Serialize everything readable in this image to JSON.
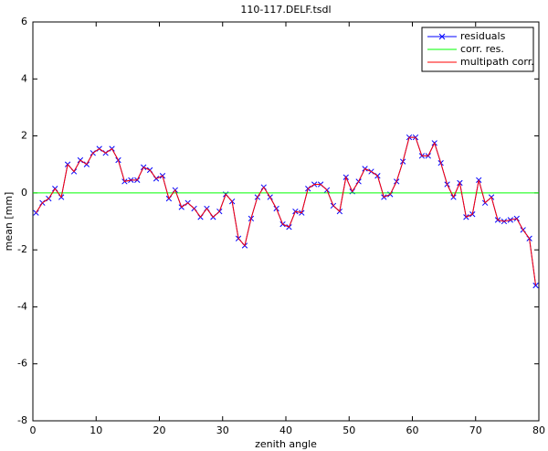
{
  "chart_data": {
    "type": "line",
    "title": "110-117.DELF.tsdl",
    "x_label": "zenith angle",
    "y_label": "mean  [mm]",
    "x": [
      0.5,
      1.5,
      2.5,
      3.5,
      4.5,
      5.5,
      6.5,
      7.5,
      8.5,
      9.5,
      10.5,
      11.5,
      12.5,
      13.5,
      14.5,
      15.5,
      16.5,
      17.5,
      18.5,
      19.5,
      20.5,
      21.5,
      22.5,
      23.5,
      24.5,
      25.5,
      26.5,
      27.5,
      28.5,
      29.5,
      30.5,
      31.5,
      32.5,
      33.5,
      34.5,
      35.5,
      36.5,
      37.5,
      38.5,
      39.5,
      40.5,
      41.5,
      42.5,
      43.5,
      44.5,
      45.5,
      46.5,
      47.5,
      48.5,
      49.5,
      50.5,
      51.5,
      52.5,
      53.5,
      54.5,
      55.5,
      56.5,
      57.5,
      58.5,
      59.5,
      60.5,
      61.5,
      62.5,
      63.5,
      64.5,
      65.5,
      66.5,
      67.5,
      68.5,
      69.5,
      70.5,
      71.5,
      72.5,
      73.5,
      74.5,
      75.5,
      76.5,
      77.5,
      78.5,
      79.5
    ],
    "series": [
      {
        "name": "residuals",
        "color": "#0000ff",
        "marker": "x",
        "values": [
          -0.7,
          -0.35,
          -0.2,
          0.15,
          -0.15,
          1.0,
          0.75,
          1.15,
          1.0,
          1.4,
          1.55,
          1.4,
          1.55,
          1.15,
          0.4,
          0.45,
          0.45,
          0.9,
          0.8,
          0.5,
          0.6,
          -0.2,
          0.1,
          -0.5,
          -0.35,
          -0.55,
          -0.85,
          -0.55,
          -0.85,
          -0.65,
          -0.05,
          -0.3,
          -1.6,
          -1.85,
          -0.9,
          -0.15,
          0.2,
          -0.15,
          -0.55,
          -1.1,
          -1.2,
          -0.65,
          -0.7,
          0.15,
          0.3,
          0.3,
          0.1,
          -0.45,
          -0.65,
          0.55,
          0.05,
          0.4,
          0.85,
          0.75,
          0.6,
          -0.15,
          -0.05,
          0.4,
          1.1,
          1.95,
          1.95,
          1.3,
          1.3,
          1.75,
          1.05,
          0.3,
          -0.15,
          0.35,
          -0.85,
          -0.75,
          0.45,
          -0.35,
          -0.15,
          -0.95,
          -1.0,
          -0.95,
          -0.9,
          -1.3,
          -1.6,
          -3.25
        ]
      },
      {
        "name": "corr. res.",
        "color": "#00ff00",
        "x": [
          0,
          80
        ],
        "values": [
          0,
          0
        ]
      },
      {
        "name": "multipath corr.",
        "color": "#ff0000",
        "values": [
          -0.7,
          -0.35,
          -0.2,
          0.15,
          -0.15,
          1.0,
          0.75,
          1.15,
          1.0,
          1.4,
          1.55,
          1.4,
          1.55,
          1.15,
          0.4,
          0.45,
          0.45,
          0.9,
          0.8,
          0.5,
          0.6,
          -0.2,
          0.1,
          -0.5,
          -0.35,
          -0.55,
          -0.85,
          -0.55,
          -0.85,
          -0.65,
          -0.05,
          -0.3,
          -1.6,
          -1.85,
          -0.9,
          -0.15,
          0.2,
          -0.15,
          -0.55,
          -1.1,
          -1.2,
          -0.65,
          -0.7,
          0.15,
          0.3,
          0.3,
          0.1,
          -0.45,
          -0.65,
          0.55,
          0.05,
          0.4,
          0.85,
          0.75,
          0.6,
          -0.15,
          -0.05,
          0.4,
          1.1,
          1.95,
          1.95,
          1.3,
          1.3,
          1.75,
          1.05,
          0.3,
          -0.15,
          0.35,
          -0.85,
          -0.75,
          0.45,
          -0.35,
          -0.15,
          -0.95,
          -1.0,
          -0.95,
          -0.9,
          -1.3,
          -1.6,
          -3.25
        ]
      }
    ],
    "xlim": [
      0,
      80
    ],
    "xticks": [
      0,
      10,
      20,
      30,
      40,
      50,
      60,
      70,
      80
    ],
    "ylim": [
      -8,
      6
    ],
    "yticks": [
      -8,
      -6,
      -4,
      -2,
      0,
      2,
      4,
      6
    ],
    "legend": "upper right"
  }
}
